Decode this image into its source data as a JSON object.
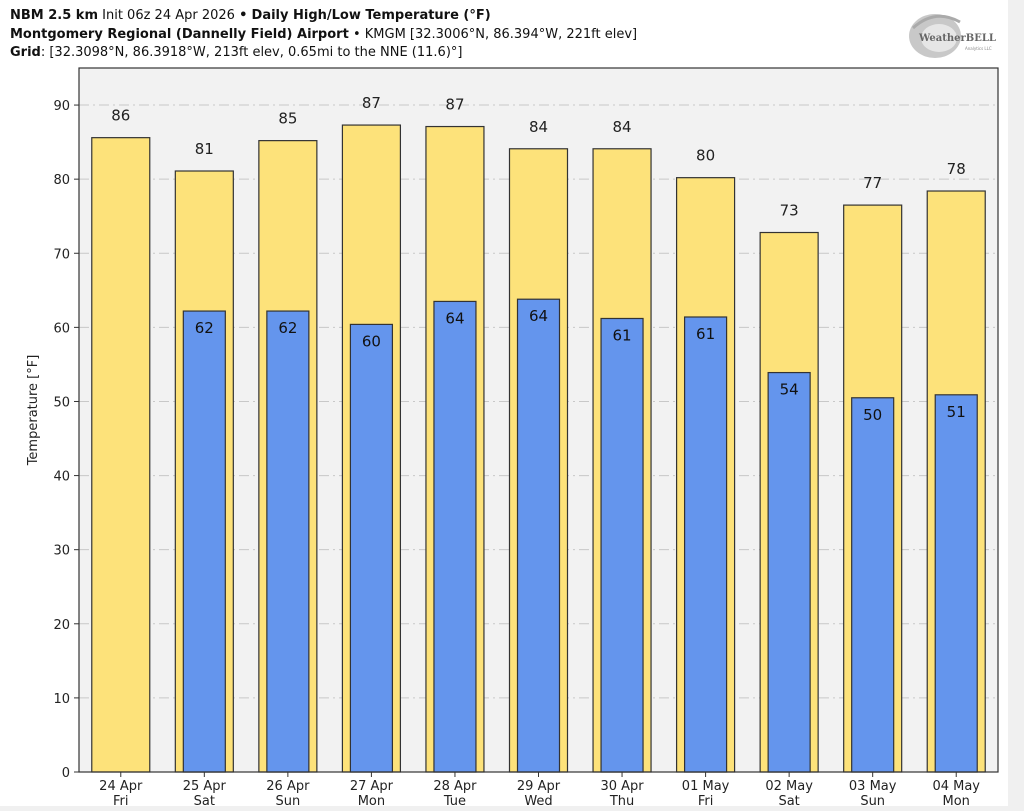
{
  "header": {
    "model": "NBM 2.5 km",
    "init": "Init 06z 24 Apr 2026",
    "bullet": "•",
    "product": "Daily High/Low Temperature (°F)",
    "station_name": "Montgomery Regional (Dannelly Field) Airport",
    "station_info": "KMGM [32.3006°N, 86.394°W, 221ft elev]",
    "grid_label": "Grid",
    "grid_info": ": [32.3098°N, 86.3918°W, 213ft elev, 0.65mi to the NNE (11.6)°]"
  },
  "logo": {
    "text": "WeatherBELL",
    "sub": "Analytics LLC"
  },
  "colors": {
    "high": "#fde27a",
    "low": "#6495ed",
    "plot_bg": "#f2f2f2",
    "edge": "#333333",
    "grid": "#c8c8c8"
  },
  "chart_data": {
    "type": "bar",
    "title": "Daily High/Low Temperature (°F)",
    "xlabel": "",
    "ylabel": "Temperature [°F]",
    "ylim": [
      0,
      95
    ],
    "yticks": [
      0,
      10,
      20,
      30,
      40,
      50,
      60,
      70,
      80,
      90
    ],
    "grid": true,
    "categories": [
      {
        "date": "24 Apr",
        "day": "Fri"
      },
      {
        "date": "25 Apr",
        "day": "Sat"
      },
      {
        "date": "26 Apr",
        "day": "Sun"
      },
      {
        "date": "27 Apr",
        "day": "Mon"
      },
      {
        "date": "28 Apr",
        "day": "Tue"
      },
      {
        "date": "29 Apr",
        "day": "Wed"
      },
      {
        "date": "30 Apr",
        "day": "Thu"
      },
      {
        "date": "01 May",
        "day": "Fri"
      },
      {
        "date": "02 May",
        "day": "Sat"
      },
      {
        "date": "03 May",
        "day": "Sun"
      },
      {
        "date": "04 May",
        "day": "Mon"
      }
    ],
    "series": [
      {
        "name": "High",
        "values": [
          85.6,
          81.1,
          85.2,
          87.3,
          87.1,
          84.1,
          84.1,
          80.2,
          72.8,
          76.5,
          78.4
        ],
        "labels": [
          "86",
          "81",
          "85",
          "87",
          "87",
          "84",
          "84",
          "80",
          "73",
          "77",
          "78"
        ]
      },
      {
        "name": "Low",
        "values": [
          null,
          62.2,
          62.2,
          60.4,
          63.5,
          63.8,
          61.2,
          61.4,
          53.9,
          50.5,
          50.9
        ],
        "labels": [
          null,
          "62",
          "62",
          "60",
          "64",
          "64",
          "61",
          "61",
          "54",
          "50",
          "51"
        ]
      }
    ]
  }
}
